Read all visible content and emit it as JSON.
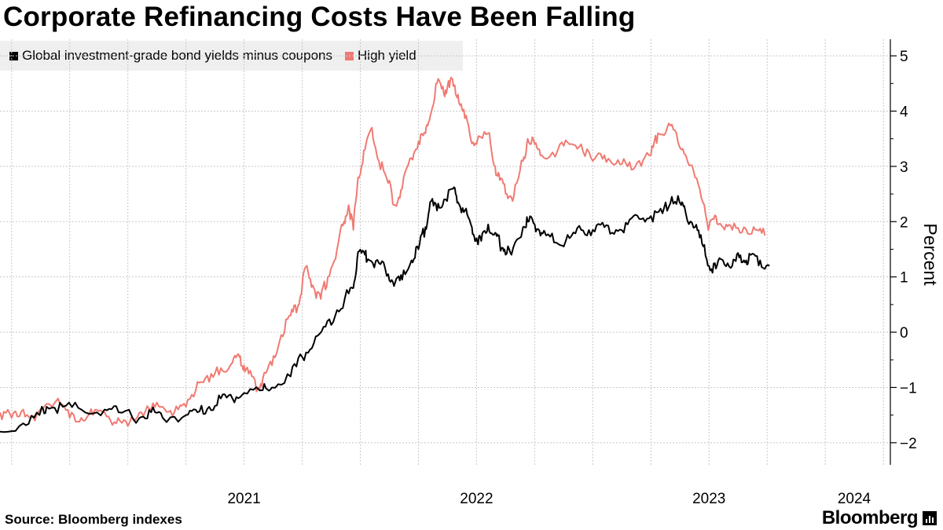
{
  "chart_data": {
    "type": "line",
    "title": "Corporate Refinancing Costs Have Been Falling",
    "xlabel": "",
    "ylabel": "Percent",
    "ylim": [
      -2.4,
      5.3
    ],
    "yticks": [
      5,
      4,
      3,
      2,
      1,
      0,
      -1,
      -2
    ],
    "xlim": [
      2020.45,
      2024.28
    ],
    "xtick_labels": [
      {
        "value": 2021,
        "label": "2021"
      },
      {
        "value": 2022,
        "label": "2022"
      },
      {
        "value": 2023,
        "label": "2023"
      },
      {
        "value": 2024,
        "label": "2024"
      }
    ],
    "grid": true,
    "legend_position": "top-left",
    "series": [
      {
        "name": "Global investment-grade bond yields minus coupons",
        "color": "#000000",
        "points": [
          [
            2020.45,
            -1.8
          ],
          [
            2020.55,
            -1.65
          ],
          [
            2020.62,
            -1.5
          ],
          [
            2020.65,
            -1.35
          ],
          [
            2020.72,
            -1.35
          ],
          [
            2020.8,
            -1.4
          ],
          [
            2020.9,
            -1.4
          ],
          [
            2020.96,
            -1.45
          ],
          [
            2021.05,
            -1.55
          ],
          [
            2021.1,
            -1.45
          ],
          [
            2021.15,
            -1.55
          ],
          [
            2021.25,
            -1.5
          ],
          [
            2021.3,
            -1.45
          ],
          [
            2021.35,
            -1.35
          ],
          [
            2021.4,
            -1.2
          ],
          [
            2021.45,
            -1.2
          ],
          [
            2021.5,
            -1.1
          ],
          [
            2021.58,
            -1.05
          ],
          [
            2021.62,
            -1.0
          ],
          [
            2021.7,
            -0.8
          ],
          [
            2021.75,
            -0.45
          ],
          [
            2021.8,
            -0.2
          ],
          [
            2021.85,
            0.1
          ],
          [
            2021.9,
            0.4
          ],
          [
            2021.95,
            0.7
          ],
          [
            2021.97,
            0.8
          ],
          [
            2021.99,
            1.45
          ],
          [
            2022.02,
            1.4
          ],
          [
            2022.04,
            1.3
          ],
          [
            2022.08,
            1.25
          ],
          [
            2022.12,
            1.05
          ],
          [
            2022.15,
            0.9
          ],
          [
            2022.18,
            0.95
          ],
          [
            2022.22,
            1.3
          ],
          [
            2022.25,
            1.5
          ],
          [
            2022.28,
            1.9
          ],
          [
            2022.3,
            2.35
          ],
          [
            2022.33,
            2.2
          ],
          [
            2022.36,
            2.4
          ],
          [
            2022.4,
            2.6
          ],
          [
            2022.42,
            2.35
          ],
          [
            2022.45,
            2.2
          ],
          [
            2022.48,
            1.9
          ],
          [
            2022.5,
            1.7
          ],
          [
            2022.52,
            1.65
          ],
          [
            2022.55,
            1.95
          ],
          [
            2022.58,
            1.8
          ],
          [
            2022.6,
            1.6
          ],
          [
            2022.62,
            1.5
          ],
          [
            2022.65,
            1.4
          ],
          [
            2022.7,
            1.9
          ],
          [
            2022.72,
            2.0
          ],
          [
            2022.75,
            1.95
          ],
          [
            2022.78,
            1.8
          ],
          [
            2022.8,
            1.75
          ],
          [
            2022.85,
            1.6
          ],
          [
            2022.9,
            1.7
          ],
          [
            2022.95,
            1.85
          ],
          [
            2023.0,
            1.85
          ],
          [
            2023.05,
            1.9
          ],
          [
            2023.1,
            1.85
          ],
          [
            2023.15,
            1.95
          ],
          [
            2023.2,
            2.05
          ],
          [
            2023.25,
            2.1
          ],
          [
            2023.3,
            2.15
          ],
          [
            2023.34,
            2.45
          ],
          [
            2023.38,
            2.3
          ],
          [
            2023.4,
            2.15
          ],
          [
            2023.44,
            1.9
          ],
          [
            2023.47,
            1.6
          ],
          [
            2023.5,
            1.2
          ],
          [
            2023.53,
            1.15
          ],
          [
            2023.56,
            1.3
          ],
          [
            2023.6,
            1.2
          ],
          [
            2023.63,
            1.35
          ],
          [
            2023.66,
            1.3
          ],
          [
            2023.68,
            1.4
          ],
          [
            2023.72,
            1.3
          ],
          [
            2023.76,
            1.2
          ]
        ]
      },
      {
        "name": "High yield",
        "color": "#f07a72",
        "points": [
          [
            2020.45,
            -1.45
          ],
          [
            2020.5,
            -1.55
          ],
          [
            2020.55,
            -1.4
          ],
          [
            2020.6,
            -1.6
          ],
          [
            2020.65,
            -1.3
          ],
          [
            2020.7,
            -1.2
          ],
          [
            2020.75,
            -1.55
          ],
          [
            2020.8,
            -1.55
          ],
          [
            2020.85,
            -1.5
          ],
          [
            2020.9,
            -1.45
          ],
          [
            2020.95,
            -1.65
          ],
          [
            2021.0,
            -1.7
          ],
          [
            2021.05,
            -1.45
          ],
          [
            2021.1,
            -1.4
          ],
          [
            2021.15,
            -1.35
          ],
          [
            2021.2,
            -1.45
          ],
          [
            2021.25,
            -1.35
          ],
          [
            2021.3,
            -0.9
          ],
          [
            2021.35,
            -0.9
          ],
          [
            2021.4,
            -0.65
          ],
          [
            2021.45,
            -0.55
          ],
          [
            2021.48,
            -0.45
          ],
          [
            2021.5,
            -0.6
          ],
          [
            2021.52,
            -0.75
          ],
          [
            2021.56,
            -1.0
          ],
          [
            2021.58,
            -0.85
          ],
          [
            2021.62,
            -0.6
          ],
          [
            2021.66,
            -0.05
          ],
          [
            2021.7,
            0.3
          ],
          [
            2021.73,
            0.45
          ],
          [
            2021.75,
            0.85
          ],
          [
            2021.77,
            1.2
          ],
          [
            2021.8,
            0.8
          ],
          [
            2021.83,
            0.6
          ],
          [
            2021.86,
            1.0
          ],
          [
            2021.9,
            1.5
          ],
          [
            2021.93,
            2.0
          ],
          [
            2021.95,
            2.3
          ],
          [
            2021.97,
            1.85
          ],
          [
            2021.99,
            2.8
          ],
          [
            2022.02,
            3.3
          ],
          [
            2022.05,
            3.7
          ],
          [
            2022.08,
            3.1
          ],
          [
            2022.12,
            2.7
          ],
          [
            2022.15,
            2.3
          ],
          [
            2022.18,
            2.6
          ],
          [
            2022.22,
            3.15
          ],
          [
            2022.25,
            3.45
          ],
          [
            2022.28,
            3.6
          ],
          [
            2022.3,
            3.9
          ],
          [
            2022.33,
            4.5
          ],
          [
            2022.36,
            4.3
          ],
          [
            2022.38,
            4.55
          ],
          [
            2022.4,
            4.45
          ],
          [
            2022.42,
            4.3
          ],
          [
            2022.44,
            4.0
          ],
          [
            2022.47,
            3.6
          ],
          [
            2022.5,
            3.4
          ],
          [
            2022.55,
            3.6
          ],
          [
            2022.58,
            3.0
          ],
          [
            2022.6,
            2.75
          ],
          [
            2022.63,
            2.5
          ],
          [
            2022.66,
            2.45
          ],
          [
            2022.7,
            3.1
          ],
          [
            2022.72,
            3.5
          ],
          [
            2022.75,
            3.4
          ],
          [
            2022.78,
            3.2
          ],
          [
            2022.85,
            3.3
          ],
          [
            2022.9,
            3.4
          ],
          [
            2022.95,
            3.4
          ],
          [
            2023.0,
            3.1
          ],
          [
            2023.05,
            3.2
          ],
          [
            2023.1,
            3.05
          ],
          [
            2023.15,
            3.0
          ],
          [
            2023.2,
            3.1
          ],
          [
            2023.25,
            3.2
          ],
          [
            2023.28,
            3.6
          ],
          [
            2023.32,
            3.7
          ],
          [
            2023.36,
            3.6
          ],
          [
            2023.4,
            3.2
          ],
          [
            2023.44,
            2.8
          ],
          [
            2023.48,
            2.3
          ],
          [
            2023.5,
            1.9
          ],
          [
            2023.53,
            2.1
          ],
          [
            2023.56,
            1.9
          ],
          [
            2023.6,
            1.85
          ],
          [
            2023.65,
            1.9
          ],
          [
            2023.7,
            1.85
          ],
          [
            2023.74,
            1.75
          ]
        ]
      }
    ]
  },
  "legend": {
    "items": [
      {
        "label": "Global investment-grade bond yields minus coupons",
        "color": "#000000"
      },
      {
        "label": "High yield",
        "color": "#f07a72"
      }
    ]
  },
  "footer": {
    "source": "Source: Bloomberg indexes",
    "brand": "Bloomberg"
  }
}
